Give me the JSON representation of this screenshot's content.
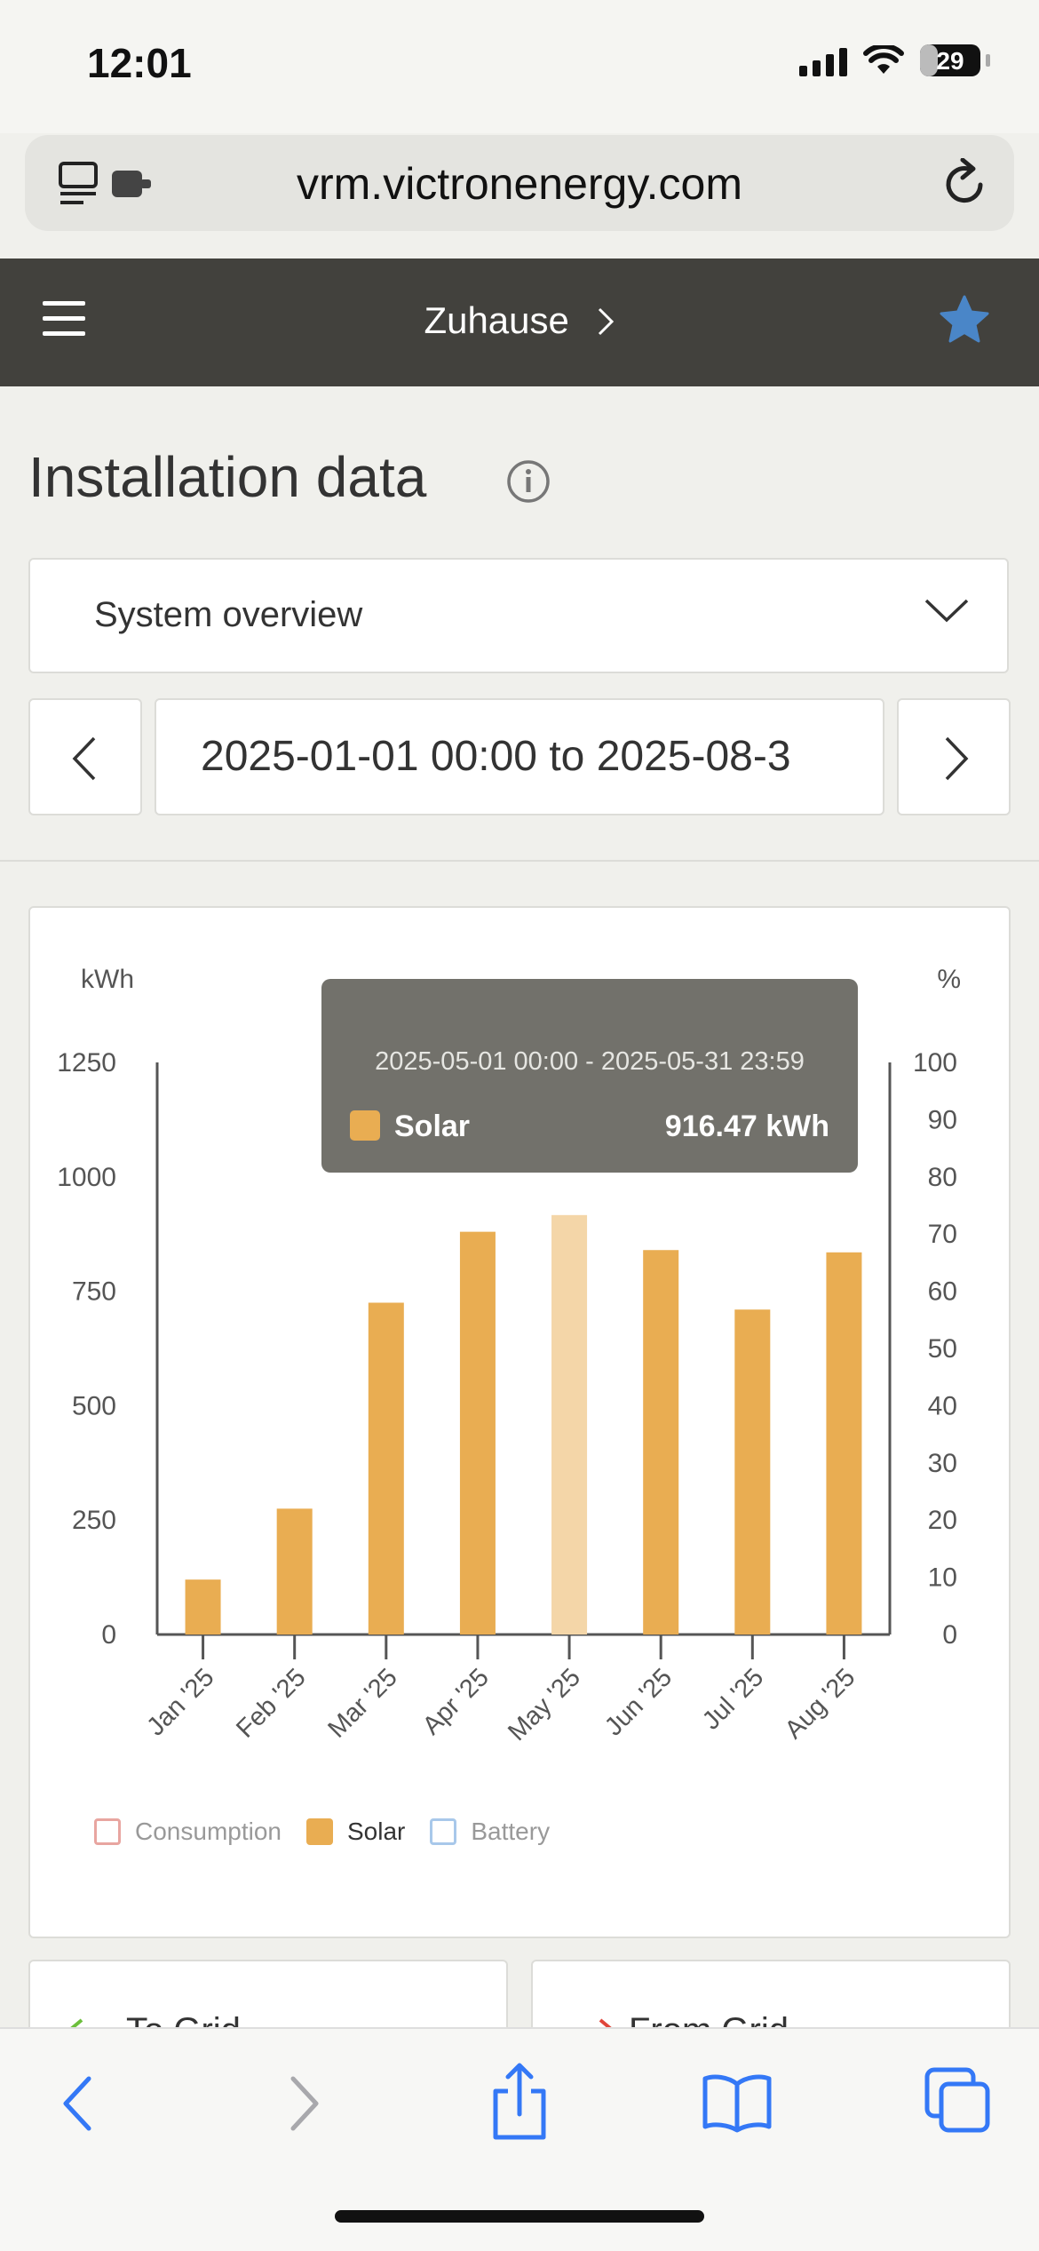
{
  "status_bar": {
    "time": "12:01",
    "battery": "29"
  },
  "browser": {
    "url": "vrm.victronenergy.com"
  },
  "app_header": {
    "site_name": "Zuhause"
  },
  "page": {
    "title": "Installation data",
    "view_select": "System overview",
    "date_range": "2025-01-01 00:00 to 2025-08-3"
  },
  "tooltip": {
    "range": "2025-05-01 00:00 - 2025-05-31 23:59",
    "series": "Solar",
    "value": "916.47 kWh"
  },
  "legend": {
    "consumption": "Consumption",
    "solar": "Solar",
    "battery": "Battery"
  },
  "bottom_cards": {
    "to_grid": "To Grid",
    "from_grid": "From Grid"
  },
  "colors": {
    "solar": "#e9ad52",
    "solar_highlight": "#f4d6a8",
    "consumption": "#e8a5a0",
    "battery": "#a8c8ea",
    "accent": "#4a86c8"
  },
  "chart_data": {
    "type": "bar",
    "categories": [
      "Jan '25",
      "Feb '25",
      "Mar '25",
      "Apr '25",
      "May '25",
      "Jun '25",
      "Jul '25",
      "Aug '25"
    ],
    "series": [
      {
        "name": "Solar",
        "values": [
          120,
          275,
          725,
          880,
          916.47,
          840,
          710,
          835
        ]
      }
    ],
    "highlight_index": 4,
    "ylabel": "kWh",
    "ylabel_right": "%",
    "ylim": [
      0,
      1250
    ],
    "ylim_right": [
      0,
      100
    ],
    "yticks": [
      "0",
      "250",
      "500",
      "750",
      "1000",
      "1250"
    ],
    "yticks_right": [
      "0",
      "10",
      "20",
      "30",
      "40",
      "50",
      "60",
      "70",
      "80",
      "90",
      "100"
    ],
    "grid": false,
    "legend_position": "bottom-left"
  }
}
